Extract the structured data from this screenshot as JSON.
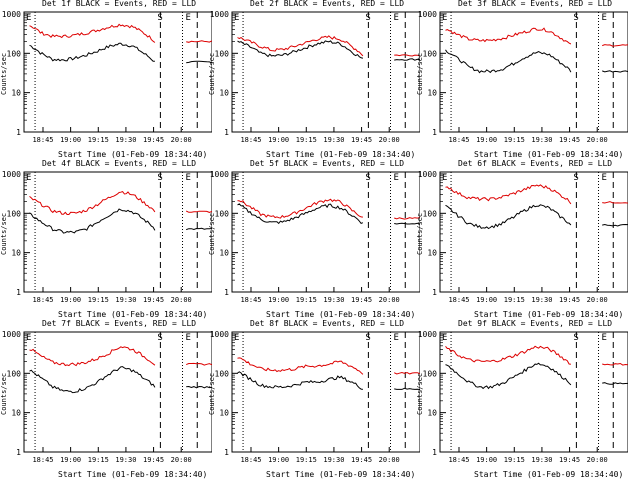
{
  "colors": {
    "events": "#000000",
    "lld": "#dd0000",
    "axis": "#000000",
    "background": "#ffffff"
  },
  "ylabel": "Counts/sec",
  "xlabel": "Start Time (01-Feb-09 18:34:40)",
  "yticks": [
    "1",
    "10",
    "100",
    "1000"
  ],
  "xticks": [
    "18:45",
    "19:00",
    "19:15",
    "19:30",
    "19:45",
    "20:00"
  ],
  "markers": [
    "E",
    "S",
    "E"
  ],
  "chart_data": [
    {
      "type": "line",
      "title": "Det 1f BLACK = Events, RED = LLD",
      "series": [
        {
          "name": "BLACK = Events",
          "values": [
            160,
            100,
            70,
            68,
            75,
            90,
            115,
            150,
            175,
            155,
            100,
            60
          ]
        },
        {
          "name": "RED = LLD",
          "values": [
            520,
            330,
            270,
            270,
            290,
            330,
            390,
            470,
            540,
            480,
            330,
            200
          ]
        }
      ]
    },
    {
      "type": "line",
      "title": "Det 2f BLACK = Events, RED = LLD",
      "series": [
        {
          "name": "BLACK = Events",
          "values": [
            200,
            150,
            100,
            85,
            90,
            110,
            140,
            175,
            200,
            175,
            110,
            70
          ]
        },
        {
          "name": "RED = LLD",
          "values": [
            260,
            200,
            150,
            120,
            125,
            150,
            185,
            230,
            260,
            230,
            150,
            90
          ]
        }
      ]
    },
    {
      "type": "line",
      "title": "Det 3f BLACK = Events, RED = LLD",
      "series": [
        {
          "name": "BLACK = Events",
          "values": [
            120,
            75,
            45,
            35,
            35,
            40,
            55,
            80,
            105,
            95,
            60,
            35
          ]
        },
        {
          "name": "RED = LLD",
          "values": [
            420,
            300,
            230,
            210,
            215,
            240,
            290,
            350,
            430,
            380,
            260,
            160
          ]
        }
      ]
    },
    {
      "type": "line",
      "title": "Det 4f BLACK = Events, RED = LLD",
      "series": [
        {
          "name": "BLACK = Events",
          "values": [
            95,
            60,
            40,
            33,
            33,
            40,
            60,
            90,
            130,
            110,
            70,
            40
          ]
        },
        {
          "name": "RED = LLD",
          "values": [
            250,
            170,
            115,
            100,
            100,
            120,
            170,
            250,
            360,
            300,
            190,
            110
          ]
        }
      ]
    },
    {
      "type": "line",
      "title": "Det 5f BLACK = Events, RED = LLD",
      "series": [
        {
          "name": "BLACK = Events",
          "values": [
            170,
            110,
            70,
            58,
            60,
            75,
            100,
            135,
            160,
            140,
            90,
            55
          ]
        },
        {
          "name": "RED = LLD",
          "values": [
            230,
            150,
            95,
            80,
            82,
            100,
            135,
            185,
            225,
            195,
            120,
            75
          ]
        }
      ]
    },
    {
      "type": "line",
      "title": "Det 6f BLACK = Events, RED = LLD",
      "series": [
        {
          "name": "BLACK = Events",
          "values": [
            150,
            90,
            55,
            45,
            45,
            55,
            80,
            120,
            165,
            140,
            85,
            50
          ]
        },
        {
          "name": "RED = LLD",
          "values": [
            500,
            330,
            250,
            230,
            230,
            260,
            320,
            410,
            520,
            450,
            300,
            190
          ]
        }
      ]
    },
    {
      "type": "line",
      "title": "Det 7f BLACK = Events, RED = LLD",
      "series": [
        {
          "name": "BLACK = Events",
          "values": [
            120,
            75,
            45,
            35,
            35,
            42,
            60,
            95,
            140,
            120,
            75,
            45
          ]
        },
        {
          "name": "RED = LLD",
          "values": [
            420,
            270,
            190,
            170,
            170,
            190,
            240,
            330,
            480,
            410,
            270,
            170
          ]
        }
      ]
    },
    {
      "type": "line",
      "title": "Det 8f BLACK = Events, RED = LLD",
      "series": [
        {
          "name": "BLACK = Events",
          "values": [
            110,
            75,
            50,
            45,
            45,
            50,
            60,
            60,
            70,
            80,
            60,
            40
          ]
        },
        {
          "name": "RED = LLD",
          "values": [
            260,
            180,
            130,
            120,
            120,
            130,
            150,
            155,
            170,
            200,
            150,
            100
          ]
        }
      ]
    },
    {
      "type": "line",
      "title": "Det 9f BLACK = Events, RED = LLD",
      "series": [
        {
          "name": "BLACK = Events",
          "values": [
            170,
            100,
            60,
            45,
            45,
            55,
            80,
            120,
            180,
            150,
            90,
            55
          ]
        },
        {
          "name": "RED = LLD",
          "values": [
            450,
            300,
            220,
            200,
            200,
            225,
            280,
            360,
            480,
            420,
            280,
            170
          ]
        }
      ]
    }
  ]
}
